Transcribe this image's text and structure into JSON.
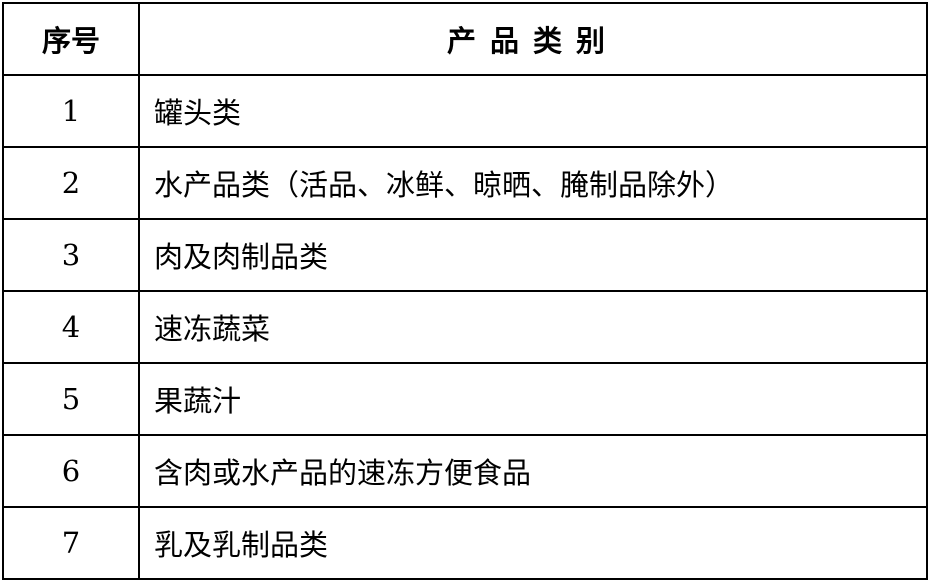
{
  "table": {
    "headers": [
      "序号",
      "产品类别"
    ],
    "rows": [
      {
        "no": "1",
        "category": "罐头类"
      },
      {
        "no": "2",
        "category": "水产品类（活品、冰鲜、晾晒、腌制品除外）"
      },
      {
        "no": "3",
        "category": "肉及肉制品类"
      },
      {
        "no": "4",
        "category": "速冻蔬菜"
      },
      {
        "no": "5",
        "category": "果蔬汁"
      },
      {
        "no": "6",
        "category": "含肉或水产品的速冻方便食品"
      },
      {
        "no": "7",
        "category": "乳及乳制品类"
      }
    ]
  }
}
